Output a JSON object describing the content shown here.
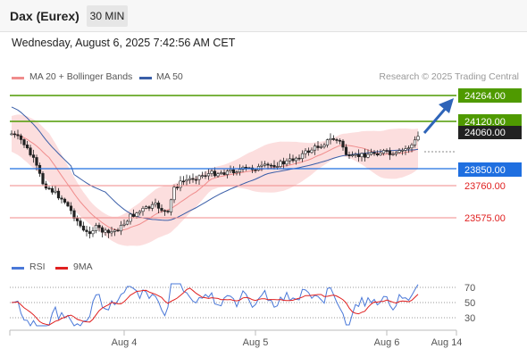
{
  "header": {
    "title": "Dax (Eurex)",
    "timeframe": "30 MIN"
  },
  "datetime": "Wednesday, August 6, 2025 7:42:56 AM CET",
  "legend": {
    "items": [
      {
        "label": "MA 20 + Bollinger Bands",
        "color": "#f08c8c"
      },
      {
        "label": "MA 50",
        "color": "#3a5ea8"
      }
    ],
    "credit": "Research © 2025 Trading Central"
  },
  "levels": [
    {
      "value": "24264.00",
      "kind": "target",
      "color": "#4f9a00"
    },
    {
      "value": "24120.00",
      "kind": "resistance",
      "color": "#4f9a00"
    },
    {
      "value": "24060.00",
      "kind": "last",
      "color": "#222222"
    },
    {
      "value": "23850.00",
      "kind": "pivot",
      "color": "#1f6fe0"
    },
    {
      "value": "23760.00",
      "kind": "support",
      "color": "#e02020"
    },
    {
      "value": "23575.00",
      "kind": "support",
      "color": "#e02020"
    }
  ],
  "rsi_panel": {
    "legend": [
      {
        "label": "RSI",
        "color": "#4a78d8"
      },
      {
        "label": "9MA",
        "color": "#e02020"
      }
    ],
    "levels": [
      "70",
      "50",
      "30"
    ]
  },
  "x_axis": {
    "labels": [
      "Aug 4",
      "Aug 5",
      "Aug 6",
      "Aug 14"
    ]
  }
}
